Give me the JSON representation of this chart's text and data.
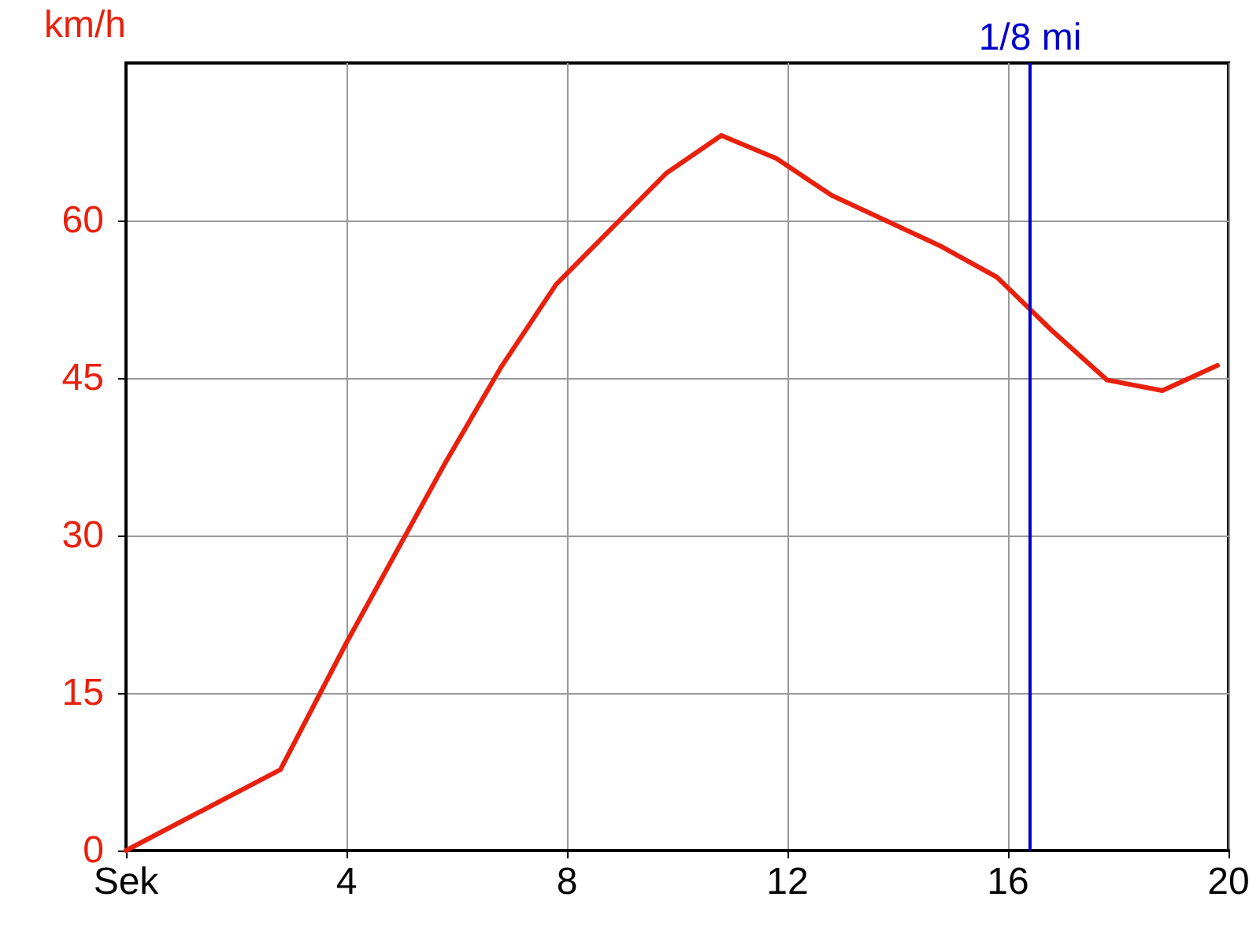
{
  "chart_data": {
    "type": "line",
    "ylabel": "km/h",
    "x": [
      0,
      2.8,
      4,
      5.8,
      6.8,
      7.8,
      9.8,
      10.8,
      11.8,
      12.8,
      14.8,
      15.8,
      16.8,
      17.8,
      18.8,
      19.8
    ],
    "series": [
      {
        "color": "#e8200c",
        "values": [
          0,
          7.7,
          19.8,
          37,
          46,
          53.9,
          64.5,
          68.1,
          65.9,
          62.4,
          57.5,
          54.6,
          49.5,
          44.8,
          43.8,
          46.2
        ]
      }
    ],
    "xlim": [
      0,
      20
    ],
    "xticks": [
      {
        "value": 0,
        "label": "Sek"
      },
      4,
      8,
      12,
      16,
      20
    ],
    "ylim": [
      0,
      75
    ],
    "yticks": [
      0,
      15,
      30,
      45,
      60
    ],
    "grid": true,
    "marker": "none",
    "line_style": "solid",
    "ref_lines": [
      {
        "axis": "x",
        "value": 16.4,
        "label": "1/8 mi",
        "color": "#0000cc"
      }
    ]
  }
}
